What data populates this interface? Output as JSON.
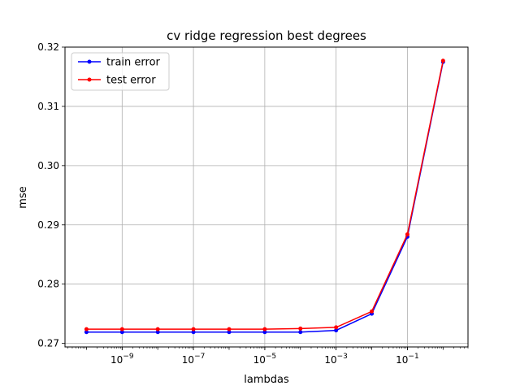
{
  "chart_data": {
    "type": "line",
    "title": "cv ridge regression best degrees",
    "xlabel": "lambdas",
    "ylabel": "mse",
    "x_scale": "log",
    "x": [
      1e-10,
      1e-09,
      1e-08,
      1e-07,
      1e-06,
      1e-05,
      0.0001,
      0.001,
      0.01,
      0.1,
      1
    ],
    "xlim": [
      2.5e-11,
      5
    ],
    "ylim": [
      0.2694,
      0.32
    ],
    "x_ticks": [
      {
        "value": 1e-09,
        "base": "10",
        "exp": "−9"
      },
      {
        "value": 1e-07,
        "base": "10",
        "exp": "−7"
      },
      {
        "value": 1e-05,
        "base": "10",
        "exp": "−5"
      },
      {
        "value": 0.001,
        "base": "10",
        "exp": "−3"
      },
      {
        "value": 0.1,
        "base": "10",
        "exp": "−1"
      }
    ],
    "y_ticks": [
      {
        "value": 0.27,
        "label": "0.27"
      },
      {
        "value": 0.28,
        "label": "0.28"
      },
      {
        "value": 0.29,
        "label": "0.29"
      },
      {
        "value": 0.3,
        "label": "0.30"
      },
      {
        "value": 0.31,
        "label": "0.31"
      },
      {
        "value": 0.32,
        "label": "0.32"
      }
    ],
    "grid": true,
    "legend_position": "top-left",
    "series": [
      {
        "name": "train error",
        "color": "#0000ff",
        "values": [
          0.2719,
          0.2719,
          0.2719,
          0.2719,
          0.2719,
          0.2719,
          0.2719,
          0.2722,
          0.275,
          0.288,
          0.3175
        ]
      },
      {
        "name": "test error",
        "color": "#ff0000",
        "values": [
          0.2724,
          0.2724,
          0.2724,
          0.2724,
          0.2724,
          0.2724,
          0.2725,
          0.2727,
          0.2754,
          0.2884,
          0.3177
        ]
      }
    ]
  }
}
